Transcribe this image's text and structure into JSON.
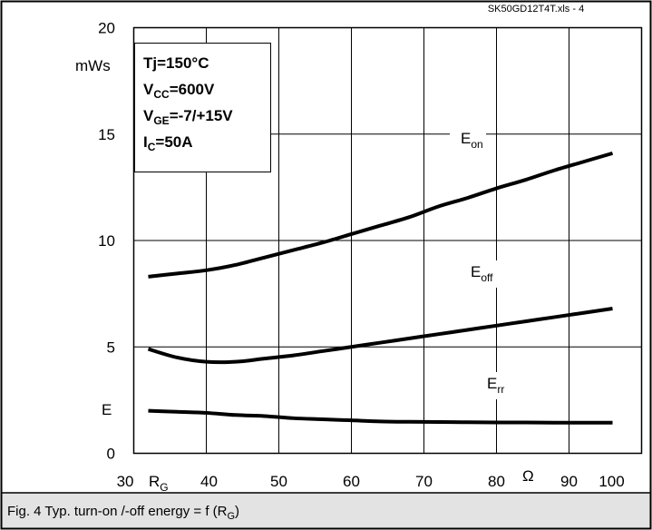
{
  "file_reference": "SK50GD12T4T.xls - 4",
  "caption": {
    "prefix": "Fig. 4 Typ. turn-on /-off energy = f (R",
    "subscript": "G",
    "suffix": ")"
  },
  "conditions": {
    "tj": "Tj=150°C",
    "vcc": {
      "main": "V",
      "sub": "CC",
      "rest": "=600V"
    },
    "vge": {
      "main": "V",
      "sub": "GE",
      "rest": "=-7/+15V"
    },
    "ic": {
      "main": "I",
      "sub": "C",
      "rest": "=50A"
    }
  },
  "axis": {
    "y_unit": "mWs",
    "y_symbol": "E",
    "x_symbol": "R",
    "x_symbol_sub": "G",
    "x_unit": "Ω"
  },
  "colors": {
    "line": "#000000",
    "caption_bg": "#e3e3e3",
    "frame": "#000000"
  },
  "chart_data": {
    "type": "line",
    "title": "",
    "xlabel": "RG",
    "ylabel": "E",
    "x_unit": "Ω",
    "y_unit": "mWs",
    "xlim": [
      30,
      100
    ],
    "ylim": [
      0,
      20
    ],
    "x_ticks": [
      "30",
      "40",
      "50",
      "60",
      "70",
      "80",
      "90",
      "100"
    ],
    "y_ticks": [
      "0",
      "5",
      "10",
      "15",
      "20"
    ],
    "grid": true,
    "series": [
      {
        "name": "Eon",
        "label_main": "E",
        "label_sub": "on",
        "x": [
          32,
          36,
          40,
          44,
          48,
          52,
          56,
          60,
          64,
          68,
          72,
          76,
          80,
          84,
          88,
          92,
          96
        ],
        "y": [
          8.3,
          8.45,
          8.6,
          8.85,
          9.2,
          9.55,
          9.9,
          10.3,
          10.7,
          11.1,
          11.6,
          12.0,
          12.45,
          12.85,
          13.3,
          13.7,
          14.1
        ]
      },
      {
        "name": "Eoff",
        "label_main": "E",
        "label_sub": "off",
        "x": [
          32,
          36,
          40,
          44,
          48,
          52,
          56,
          60,
          64,
          68,
          72,
          76,
          80,
          84,
          88,
          92,
          96
        ],
        "y": [
          4.9,
          4.5,
          4.3,
          4.3,
          4.45,
          4.6,
          4.8,
          5.0,
          5.2,
          5.4,
          5.6,
          5.8,
          6.0,
          6.2,
          6.4,
          6.6,
          6.8
        ]
      },
      {
        "name": "Err",
        "label_main": "E",
        "label_sub": "rr",
        "x": [
          32,
          36,
          40,
          44,
          48,
          52,
          56,
          60,
          64,
          68,
          72,
          76,
          80,
          84,
          88,
          92,
          96
        ],
        "y": [
          2.0,
          1.95,
          1.9,
          1.8,
          1.75,
          1.65,
          1.6,
          1.55,
          1.5,
          1.48,
          1.47,
          1.46,
          1.45,
          1.45,
          1.44,
          1.44,
          1.44
        ]
      }
    ]
  }
}
